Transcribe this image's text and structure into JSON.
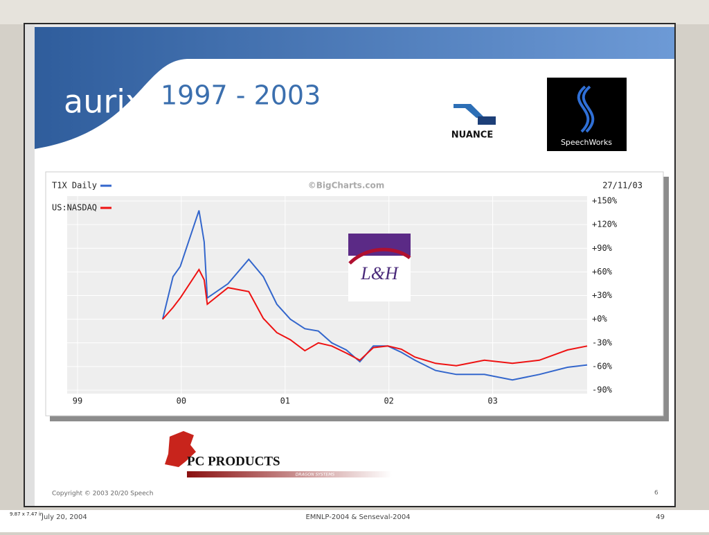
{
  "slide": {
    "brand": "aurix",
    "title": "1997 - 2003",
    "copyright": "Copyright © 2003 20/20 Speech",
    "slide_number": "6",
    "logos": {
      "nuance": "NUANCE",
      "speechworks": "SpeechWorks",
      "lh": "L&H",
      "pc_products": "PC PRODUCTS",
      "dragon": "DRAGON SYSTEMS"
    }
  },
  "footer": {
    "date": "July 20, 2004",
    "event": "EMNLP-2004 & Senseval-2004",
    "page": "49",
    "size": "9.87 x 7.47 in"
  },
  "chart_data": {
    "type": "line",
    "source": "©BigCharts.com",
    "date": "27/11/03",
    "grid": true,
    "x": [
      1999.82,
      1999.92,
      1999.99,
      2000.17,
      2000.22,
      2000.25,
      2000.45,
      2000.65,
      2000.79,
      2000.92,
      2001.05,
      2001.19,
      2001.32,
      2001.45,
      2001.59,
      2001.72,
      2001.85,
      2001.99,
      2002.12,
      2002.25,
      2002.45,
      2002.65,
      2002.92,
      2003.19,
      2003.45,
      2003.72,
      2003.91
    ],
    "series": [
      {
        "name": "T1X Daily",
        "color": "#3366cc",
        "values": [
          0,
          54,
          67,
          138,
          98,
          27,
          45,
          76,
          54,
          19,
          0,
          -12,
          -15,
          -30,
          -39,
          -54,
          -34,
          -34,
          -42,
          -52,
          -65,
          -70,
          -70,
          -77,
          -70,
          -61,
          -58
        ]
      },
      {
        "name": "US:NASDAQ",
        "color": "#ee1111",
        "values": [
          0,
          15,
          27,
          63,
          50,
          19,
          40,
          35,
          1,
          -17,
          -26,
          -40,
          -30,
          -34,
          -43,
          -52,
          -36,
          -34,
          -38,
          -48,
          -56,
          -59,
          -52,
          -56,
          -52,
          -39,
          -34
        ]
      }
    ],
    "xlim": [
      1998.9,
      2003.91
    ],
    "xticks": [
      {
        "value": 1999,
        "label": "99"
      },
      {
        "value": 2000,
        "label": "00"
      },
      {
        "value": 2001,
        "label": "01"
      },
      {
        "value": 2002,
        "label": "02"
      },
      {
        "value": 2003,
        "label": "03"
      }
    ],
    "ylim": [
      -90,
      150
    ],
    "yticks": [
      {
        "value": 150,
        "label": "+150%"
      },
      {
        "value": 120,
        "label": "+120%"
      },
      {
        "value": 90,
        "label": "+90%"
      },
      {
        "value": 60,
        "label": "+60%"
      },
      {
        "value": 30,
        "label": "+30%"
      },
      {
        "value": 0,
        "label": "+0%"
      },
      {
        "value": -30,
        "label": "-30%"
      },
      {
        "value": -60,
        "label": "-60%"
      },
      {
        "value": -90,
        "label": "-90%"
      }
    ]
  }
}
